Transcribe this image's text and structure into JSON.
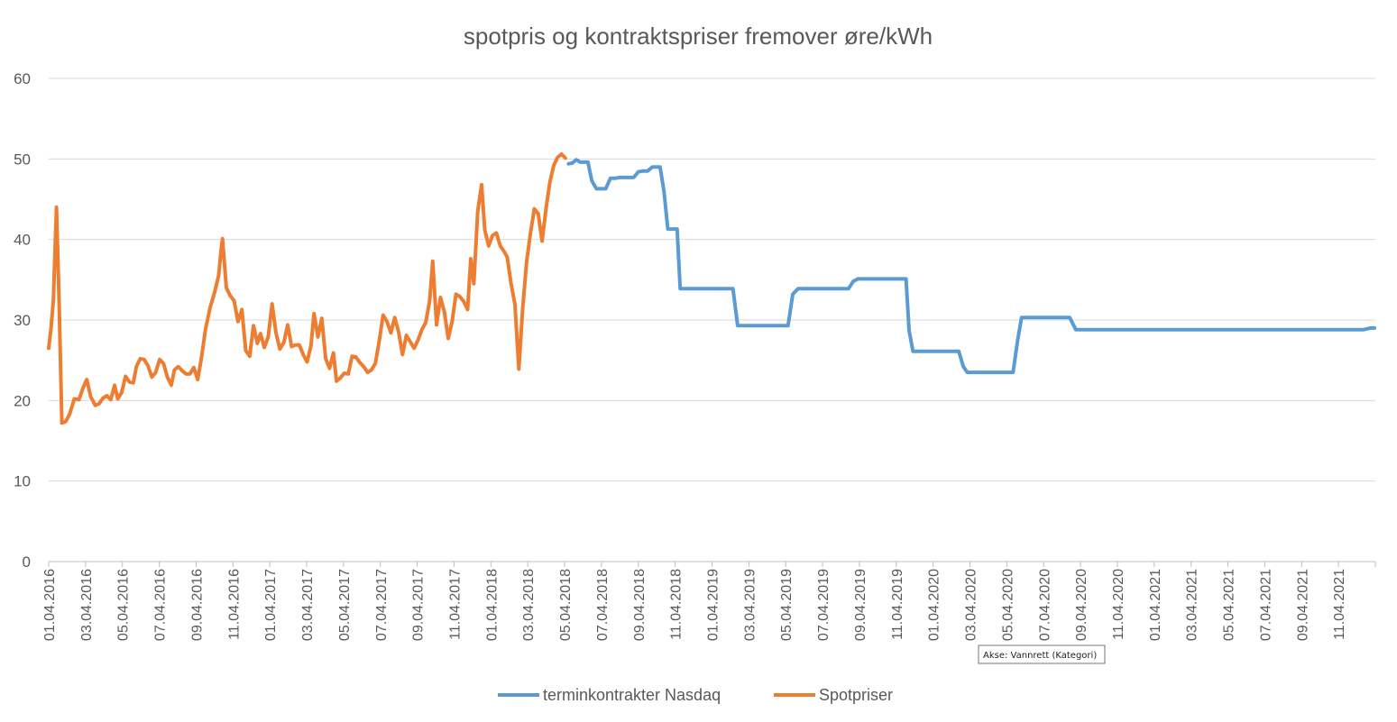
{
  "chart_data": {
    "type": "line",
    "title": "spotpris og kontraktspriser fremover øre/kWh",
    "xlabel": "",
    "ylabel": "",
    "ylim": [
      0,
      60
    ],
    "yticks": [
      "0",
      "10",
      "20",
      "30",
      "40",
      "50",
      "60"
    ],
    "grid": true,
    "legend_position": "bottom",
    "xtick_labels": [
      "01.04.2016",
      "03.04.2016",
      "05.04.2016",
      "07.04.2016",
      "09.04.2016",
      "11.04.2016",
      "01.04.2017",
      "03.04.2017",
      "05.04.2017",
      "07.04.2017",
      "09.04.2017",
      "11.04.2017",
      "01.04.2018",
      "03.04.2018",
      "05.04.2018",
      "07.04.2018",
      "09.04.2018",
      "11.04.2018",
      "01.04.2019",
      "03.04.2019",
      "05.04.2019",
      "07.04.2019",
      "09.04.2019",
      "11.04.2019",
      "01.04.2020",
      "03.04.2020",
      "05.04.2020",
      "07.04.2020",
      "09.04.2020",
      "11.04.2020",
      "01.04.2021",
      "03.04.2021",
      "05.04.2021",
      "07.04.2021",
      "09.04.2021",
      "11.04.2021"
    ],
    "x_count": 72,
    "series": [
      {
        "name": "Spotpriser",
        "color": "#ED7D31",
        "points": [
          [
            0,
            26.5
          ],
          [
            0.3,
            29
          ],
          [
            0.6,
            32.5
          ],
          [
            1.0,
            44
          ],
          [
            1.35,
            32
          ],
          [
            1.7,
            17.2
          ],
          [
            2.2,
            17.4
          ],
          [
            2.7,
            18.3
          ],
          [
            3.3,
            20.2
          ],
          [
            3.9,
            20.1
          ],
          [
            4.4,
            21.5
          ],
          [
            4.9,
            22.6
          ],
          [
            5.4,
            20.5
          ],
          [
            6.0,
            19.4
          ],
          [
            6.5,
            19.6
          ],
          [
            7.0,
            20.3
          ],
          [
            7.5,
            20.6
          ],
          [
            8.0,
            20.1
          ],
          [
            8.5,
            21.9
          ],
          [
            8.9,
            20.2
          ],
          [
            9.4,
            21.0
          ],
          [
            9.9,
            23.0
          ],
          [
            10.4,
            22.3
          ],
          [
            10.9,
            22.2
          ],
          [
            11.3,
            24.2
          ],
          [
            11.8,
            25.2
          ],
          [
            12.3,
            25.1
          ],
          [
            12.8,
            24.3
          ],
          [
            13.3,
            22.9
          ],
          [
            13.8,
            23.5
          ],
          [
            14.3,
            25.1
          ],
          [
            14.8,
            24.6
          ],
          [
            15.3,
            22.9
          ],
          [
            15.8,
            21.9
          ],
          [
            16.2,
            23.8
          ],
          [
            16.7,
            24.2
          ],
          [
            17.2,
            23.7
          ],
          [
            17.7,
            23.3
          ],
          [
            18.2,
            23.3
          ],
          [
            18.7,
            24.1
          ],
          [
            19.2,
            22.6
          ],
          [
            19.7,
            25.4
          ],
          [
            20.2,
            28.8
          ],
          [
            20.8,
            31.5
          ],
          [
            21.4,
            33.5
          ],
          [
            21.9,
            35.5
          ],
          [
            22.2,
            38.5
          ],
          [
            22.4,
            40.1
          ],
          [
            22.9,
            34.0
          ],
          [
            23.4,
            33.0
          ],
          [
            23.9,
            32.4
          ],
          [
            24.4,
            29.8
          ],
          [
            24.9,
            31.3
          ],
          [
            25.4,
            26.2
          ],
          [
            25.9,
            25.5
          ],
          [
            26.4,
            29.3
          ],
          [
            26.9,
            27.1
          ],
          [
            27.3,
            28.3
          ],
          [
            27.8,
            26.6
          ],
          [
            28.3,
            27.9
          ],
          [
            28.8,
            32.0
          ],
          [
            29.3,
            28.4
          ],
          [
            29.8,
            26.4
          ],
          [
            30.3,
            27.2
          ],
          [
            30.8,
            29.4
          ],
          [
            31.3,
            26.7
          ],
          [
            31.8,
            26.9
          ],
          [
            32.3,
            26.9
          ],
          [
            32.8,
            25.7
          ],
          [
            33.3,
            24.8
          ],
          [
            33.8,
            26.8
          ],
          [
            34.2,
            30.8
          ],
          [
            34.7,
            27.9
          ],
          [
            35.2,
            30.2
          ],
          [
            35.7,
            25.2
          ],
          [
            36.2,
            24.0
          ],
          [
            36.7,
            25.9
          ],
          [
            37.1,
            22.4
          ],
          [
            37.6,
            22.8
          ],
          [
            38.1,
            23.4
          ],
          [
            38.6,
            23.3
          ],
          [
            39.1,
            25.5
          ],
          [
            39.6,
            25.4
          ],
          [
            40.1,
            24.7
          ],
          [
            40.6,
            24.2
          ],
          [
            41.1,
            23.5
          ],
          [
            41.6,
            23.8
          ],
          [
            42.1,
            24.6
          ],
          [
            42.6,
            27.4
          ],
          [
            43.1,
            30.6
          ],
          [
            43.6,
            29.8
          ],
          [
            44.1,
            28.4
          ],
          [
            44.6,
            30.3
          ],
          [
            45.1,
            28.5
          ],
          [
            45.6,
            25.7
          ],
          [
            46.1,
            28.1
          ],
          [
            46.6,
            27.3
          ],
          [
            47.1,
            26.5
          ],
          [
            47.6,
            27.5
          ],
          [
            48.1,
            28.8
          ],
          [
            48.6,
            29.7
          ],
          [
            49.1,
            32.4
          ],
          [
            49.5,
            37.3
          ],
          [
            50.0,
            29.4
          ],
          [
            50.5,
            32.8
          ],
          [
            51.0,
            31.0
          ],
          [
            51.5,
            27.7
          ],
          [
            52.0,
            29.8
          ],
          [
            52.5,
            33.2
          ],
          [
            53.0,
            32.9
          ],
          [
            53.5,
            32.3
          ],
          [
            54.0,
            31.3
          ],
          [
            54.4,
            37.6
          ],
          [
            54.8,
            34.5
          ],
          [
            55.3,
            43.5
          ],
          [
            55.8,
            46.8
          ],
          [
            56.2,
            41.2
          ],
          [
            56.7,
            39.2
          ],
          [
            57.2,
            40.5
          ],
          [
            57.7,
            40.8
          ],
          [
            58.2,
            39.2
          ],
          [
            58.7,
            38.5
          ],
          [
            59.1,
            37.8
          ],
          [
            59.6,
            34.5
          ],
          [
            60.1,
            31.9
          ],
          [
            60.6,
            23.9
          ],
          [
            61.1,
            31.5
          ],
          [
            61.6,
            37.2
          ],
          [
            62.1,
            40.8
          ],
          [
            62.6,
            43.8
          ],
          [
            63.1,
            43.2
          ],
          [
            63.6,
            39.8
          ],
          [
            64.1,
            43.8
          ],
          [
            64.6,
            47.1
          ],
          [
            65.1,
            49.2
          ],
          [
            65.6,
            50.2
          ],
          [
            66.1,
            50.6
          ],
          [
            66.6,
            50.1
          ]
        ]
      },
      {
        "name": "terminkontrakter Nasdaq",
        "color": "#5B9BD5",
        "points": [
          [
            67.0,
            49.4
          ],
          [
            67.5,
            49.5
          ],
          [
            68.0,
            49.9
          ],
          [
            68.5,
            49.6
          ],
          [
            69.0,
            49.6
          ],
          [
            69.5,
            49.6
          ],
          [
            70.0,
            47.3
          ],
          [
            70.6,
            46.3
          ],
          [
            71.2,
            46.3
          ],
          [
            71.8,
            46.3
          ],
          [
            72.4,
            47.6
          ],
          [
            73.0,
            47.6
          ],
          [
            73.6,
            47.7
          ],
          [
            74.2,
            47.7
          ],
          [
            74.8,
            47.7
          ],
          [
            75.4,
            47.7
          ],
          [
            76.0,
            48.4
          ],
          [
            76.6,
            48.5
          ],
          [
            77.2,
            48.5
          ],
          [
            77.8,
            49.0
          ],
          [
            78.4,
            49.0
          ],
          [
            78.8,
            49.0
          ],
          [
            79.3,
            46.0
          ],
          [
            79.8,
            41.3
          ],
          [
            80.4,
            41.3
          ],
          [
            81.0,
            41.3
          ],
          [
            81.4,
            33.9
          ],
          [
            84.0,
            33.9
          ],
          [
            87.0,
            33.9
          ],
          [
            88.2,
            33.9
          ],
          [
            88.8,
            29.3
          ],
          [
            92.0,
            29.3
          ],
          [
            95.3,
            29.3
          ],
          [
            95.9,
            33.2
          ],
          [
            96.6,
            33.9
          ],
          [
            99.0,
            33.9
          ],
          [
            102.0,
            33.9
          ],
          [
            103.1,
            33.9
          ],
          [
            103.7,
            34.8
          ],
          [
            104.3,
            35.1
          ],
          [
            107.0,
            35.1
          ],
          [
            110.0,
            35.1
          ],
          [
            110.5,
            35.1
          ],
          [
            110.9,
            28.7
          ],
          [
            111.4,
            26.1
          ],
          [
            114.0,
            26.1
          ],
          [
            117.3,
            26.1
          ],
          [
            117.9,
            24.2
          ],
          [
            118.4,
            23.5
          ],
          [
            121.0,
            23.5
          ],
          [
            124.3,
            23.5
          ],
          [
            124.9,
            27.5
          ],
          [
            125.4,
            30.3
          ],
          [
            128.0,
            30.3
          ],
          [
            131.0,
            30.3
          ],
          [
            131.6,
            30.3
          ],
          [
            132.4,
            28.8
          ],
          [
            135.0,
            28.8
          ],
          [
            140.0,
            28.8
          ],
          [
            145.0,
            28.8
          ],
          [
            150.0,
            28.8
          ],
          [
            155.0,
            28.8
          ],
          [
            160.0,
            28.8
          ],
          [
            165.0,
            28.8
          ],
          [
            169.5,
            28.8
          ],
          [
            170.4,
            29.0
          ],
          [
            170.9,
            29.0
          ]
        ]
      }
    ],
    "x_extent": 171
  },
  "tooltip": {
    "text": "Akse: Vannrett (Kategori)"
  }
}
